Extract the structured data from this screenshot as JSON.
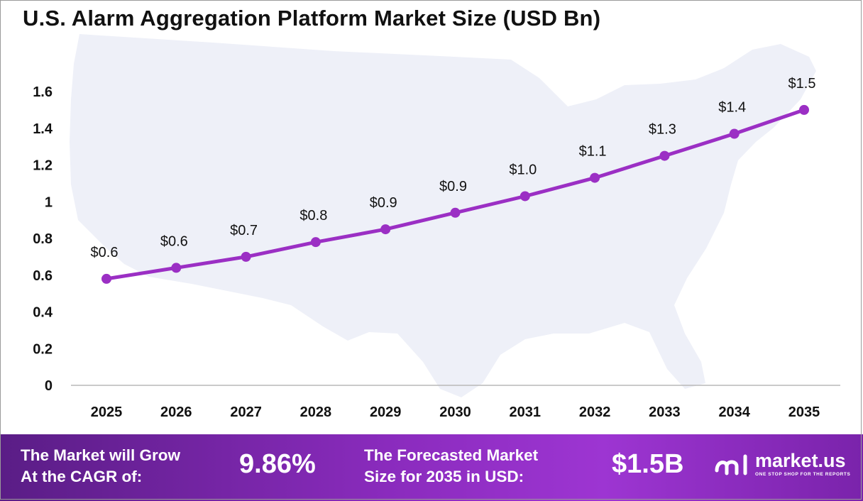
{
  "title": "U.S. Alarm Aggregation Platform Market Size (USD Bn)",
  "colors": {
    "line": "#9b2fc4",
    "map": "#eef0f8",
    "axis": "#b8b8b8"
  },
  "chart_data": {
    "type": "line",
    "title": "U.S. Alarm Aggregation Platform Market Size (USD Bn)",
    "categories": [
      "2025",
      "2026",
      "2027",
      "2028",
      "2029",
      "2030",
      "2031",
      "2032",
      "2033",
      "2034",
      "2035"
    ],
    "values": [
      0.58,
      0.64,
      0.7,
      0.78,
      0.85,
      0.94,
      1.03,
      1.13,
      1.25,
      1.37,
      1.5
    ],
    "labels": [
      "$0.6",
      "$0.6",
      "$0.7",
      "$0.8",
      "$0.9",
      "$0.9",
      "$1.0",
      "$1.1",
      "$1.3",
      "$1.4",
      "$1.5"
    ],
    "yticks": [
      "0",
      "0.2",
      "0.4",
      "0.6",
      "0.8",
      "1",
      "1.2",
      "1.4",
      "1.6"
    ],
    "ylim": [
      0,
      1.6
    ],
    "grid": false,
    "legend": "none"
  },
  "footer": {
    "cagr_label_1": "The Market will Grow",
    "cagr_label_2": "At the CAGR of:",
    "cagr_value": "9.86%",
    "forecast_label_1": "The Forecasted Market",
    "forecast_label_2": "Size for 2035 in USD:",
    "forecast_value": "$1.5B",
    "logo_name": "market.us",
    "logo_tagline": "ONE STOP SHOP FOR THE REPORTS"
  }
}
